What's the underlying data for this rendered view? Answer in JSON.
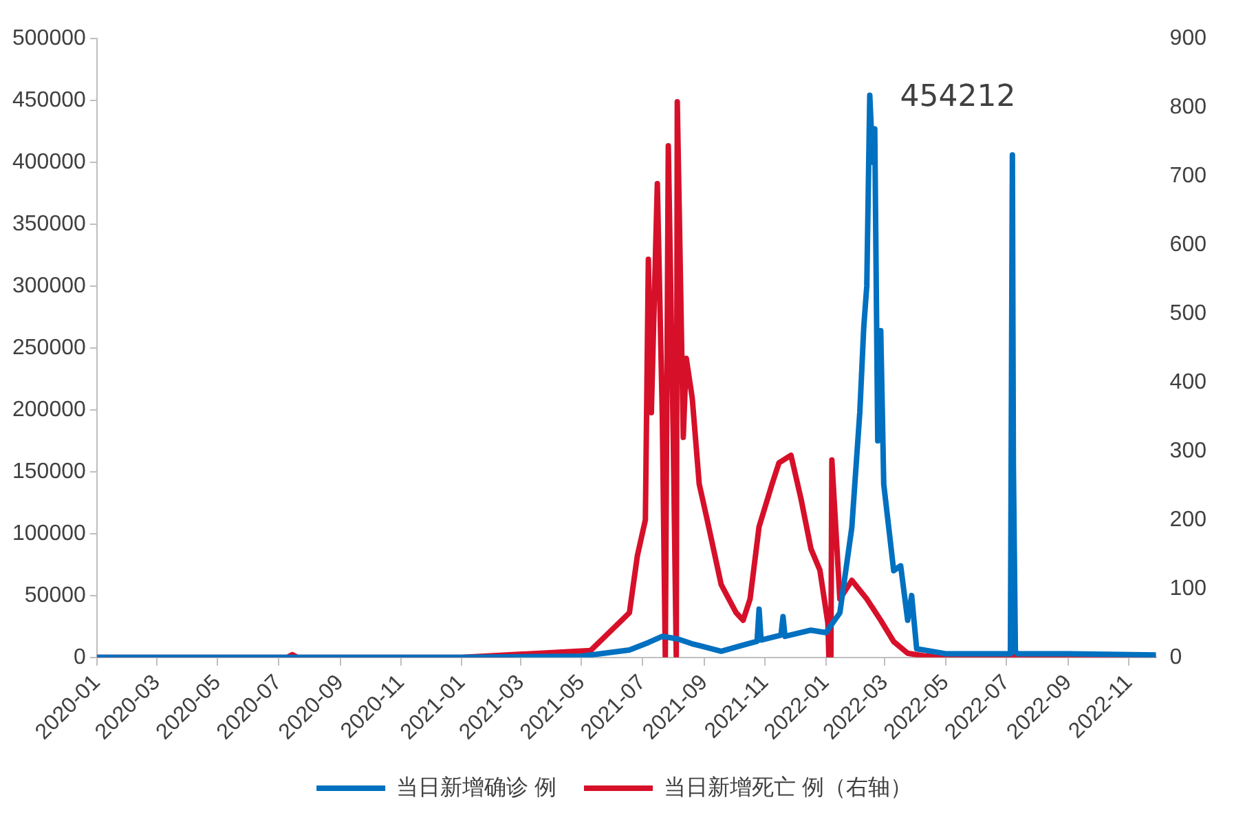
{
  "chart_data": {
    "type": "line",
    "legend": "bottom",
    "grid": false,
    "marker": "none",
    "line_style": "solid",
    "xlim": [
      "2020-01-01",
      "2022-11-28"
    ],
    "xticks": [
      "2020-01",
      "2020-03",
      "2020-05",
      "2020-07",
      "2020-09",
      "2020-11",
      "2021-01",
      "2021-03",
      "2021-05",
      "2021-07",
      "2021-09",
      "2021-11",
      "2022-01",
      "2022-03",
      "2022-05",
      "2022-07",
      "2022-09",
      "2022-11"
    ],
    "ylim": [
      0,
      500000
    ],
    "yticks": [
      0,
      50000,
      100000,
      150000,
      200000,
      250000,
      300000,
      350000,
      400000,
      450000,
      500000
    ],
    "y2lim": [
      0,
      900
    ],
    "y2ticks": [
      0,
      100,
      200,
      300,
      400,
      500,
      600,
      700,
      800,
      900
    ],
    "annotations": [
      {
        "text": "454212",
        "x": "2022-02-14",
        "y": 454212
      }
    ],
    "series": [
      {
        "name": "当日新增确诊 例",
        "color": "#0070c0",
        "x": [
          "2020-01-01",
          "2020-07-01",
          "2021-01-01",
          "2021-05-01",
          "2021-06-18",
          "2021-07-07",
          "2021-07-21",
          "2021-08-05",
          "2021-08-20",
          "2021-09-18",
          "2021-10-10",
          "2021-10-24",
          "2021-10-26",
          "2021-10-28",
          "2021-11-17",
          "2021-11-19",
          "2021-11-21",
          "2021-12-17",
          "2022-01-01",
          "2022-01-15",
          "2022-01-27",
          "2022-02-04",
          "2022-02-08",
          "2022-02-11",
          "2022-02-14",
          "2022-02-17",
          "2022-02-19",
          "2022-02-22",
          "2022-02-25",
          "2022-02-28",
          "2022-03-05",
          "2022-03-10",
          "2022-03-17",
          "2022-03-24",
          "2022-03-28",
          "2022-04-02",
          "2022-05-01",
          "2022-07-05",
          "2022-07-07",
          "2022-07-08",
          "2022-07-10",
          "2022-07-12",
          "2022-09-01",
          "2022-11-28"
        ],
        "values": [
          0,
          0,
          0,
          1000,
          6000,
          12000,
          17000,
          15000,
          11000,
          5000,
          10000,
          13000,
          39000,
          14000,
          18000,
          33000,
          17000,
          22000,
          20000,
          36000,
          105000,
          198000,
          267000,
          300000,
          454212,
          400000,
          427000,
          175000,
          264000,
          140000,
          105000,
          70000,
          74000,
          30000,
          50000,
          7000,
          3000,
          3000,
          406000,
          155000,
          5000,
          3000,
          3000,
          2000
        ]
      },
      {
        "name": "当日新增死亡 例（右轴）",
        "color": "#d7102a",
        "axis": "y2",
        "x": [
          "2020-01-01",
          "2020-07-10",
          "2020-07-15",
          "2020-07-20",
          "2021-01-01",
          "2021-05-10",
          "2021-06-18",
          "2021-06-26",
          "2021-07-04",
          "2021-07-07",
          "2021-07-10",
          "2021-07-16",
          "2021-07-21",
          "2021-07-24",
          "2021-07-27",
          "2021-08-01",
          "2021-08-04",
          "2021-08-05",
          "2021-08-11",
          "2021-08-14",
          "2021-08-20",
          "2021-08-27",
          "2021-09-04",
          "2021-09-18",
          "2021-10-03",
          "2021-10-10",
          "2021-10-17",
          "2021-10-26",
          "2021-11-08",
          "2021-11-15",
          "2021-11-27",
          "2021-12-07",
          "2021-12-17",
          "2021-12-26",
          "2022-01-03",
          "2022-01-04",
          "2022-01-06",
          "2022-01-07",
          "2022-01-15",
          "2022-01-27",
          "2022-02-11",
          "2022-02-25",
          "2022-03-10",
          "2022-03-24",
          "2022-04-10",
          "2022-11-28"
        ],
        "values": [
          0,
          0,
          4,
          0,
          0,
          10,
          65,
          148,
          200,
          579,
          356,
          689,
          350,
          0,
          744,
          315,
          0,
          808,
          320,
          435,
          377,
          252,
          200,
          106,
          65,
          54,
          85,
          190,
          252,
          283,
          294,
          231,
          158,
          127,
          50,
          0,
          0,
          287,
          85,
          112,
          85,
          54,
          23,
          6,
          2,
          2
        ]
      }
    ]
  }
}
